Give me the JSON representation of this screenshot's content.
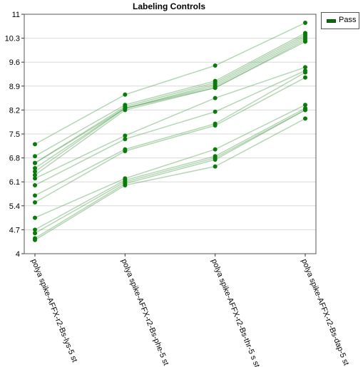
{
  "chart_data": {
    "type": "line",
    "title": "Labeling Controls",
    "categories": [
      "polya spike-AFFX-r2-Bs-lys-5 st",
      "polya spike-AFFX-r2-Bs-phe-5 st",
      "polya spike-AFFX-r2-Bs-thr-5 s st",
      "polya spike-AFFX-r2-Bs-dap-5 st"
    ],
    "ylim": [
      4,
      11
    ],
    "yticks": [
      "4",
      "4.7",
      "5.4",
      "6.1",
      "6.8",
      "7.5",
      "8.2",
      "8.9",
      "9.6",
      "10.3",
      "11"
    ],
    "grid": true,
    "legend": {
      "position": "top-right",
      "entries": [
        "Pass"
      ]
    },
    "colors": {
      "point": "#0a7a0a",
      "line": "#5aa55a"
    },
    "series": [
      {
        "values": [
          7.2,
          8.65,
          9.5,
          10.75
        ]
      },
      {
        "values": [
          6.85,
          8.35,
          9.05,
          10.45
        ]
      },
      {
        "values": [
          6.65,
          8.3,
          9.0,
          10.4
        ]
      },
      {
        "values": [
          6.65,
          8.25,
          8.95,
          10.35
        ]
      },
      {
        "values": [
          6.5,
          8.25,
          8.9,
          10.3
        ]
      },
      {
        "values": [
          6.4,
          8.25,
          8.85,
          10.25
        ]
      },
      {
        "values": [
          6.3,
          8.2,
          8.85,
          10.2
        ]
      },
      {
        "values": [
          6.2,
          7.45,
          8.55,
          9.45
        ]
      },
      {
        "values": [
          6.0,
          7.35,
          8.15,
          9.35
        ]
      },
      {
        "values": [
          5.7,
          7.05,
          7.8,
          9.3
        ]
      },
      {
        "values": [
          5.5,
          7.0,
          7.75,
          9.15
        ]
      },
      {
        "values": [
          5.05,
          6.2,
          7.05,
          8.35
        ]
      },
      {
        "values": [
          4.7,
          6.15,
          6.85,
          8.25
        ]
      },
      {
        "values": [
          4.6,
          6.1,
          6.8,
          8.2
        ]
      },
      {
        "values": [
          4.45,
          6.05,
          6.75,
          8.2
        ]
      },
      {
        "values": [
          4.4,
          6.0,
          6.55,
          7.95
        ]
      }
    ]
  }
}
